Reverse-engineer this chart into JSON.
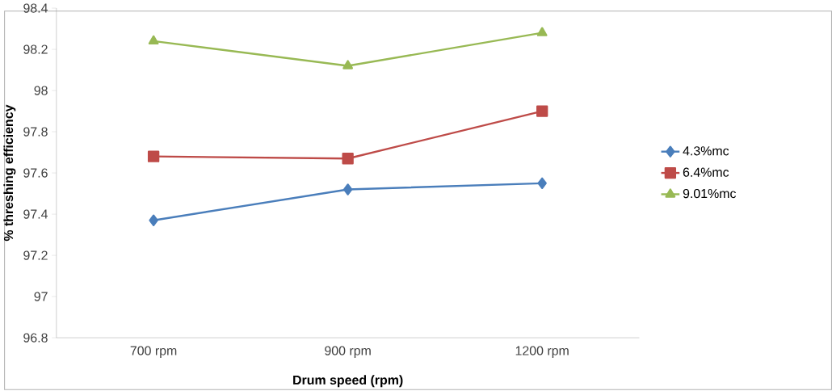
{
  "chart_data": {
    "type": "line",
    "xlabel": "Drum speed (rpm)",
    "ylabel": "% threshing efficiency",
    "categories": [
      "700 rpm",
      "900 rpm",
      "1200 rpm"
    ],
    "series": [
      {
        "name": "4.3%mc",
        "color": "#4a7ebb",
        "marker": "diamond",
        "values": [
          97.37,
          97.52,
          97.55
        ]
      },
      {
        "name": "6.4%mc",
        "color": "#be4b48",
        "marker": "square",
        "values": [
          97.68,
          97.67,
          97.9
        ]
      },
      {
        "name": "9.01%mc",
        "color": "#98b954",
        "marker": "triangle",
        "values": [
          98.24,
          98.12,
          98.28
        ]
      }
    ],
    "ylim": [
      96.8,
      98.4
    ],
    "yticks": [
      96.8,
      97,
      97.2,
      97.4,
      97.6,
      97.8,
      98,
      98.2,
      98.4
    ],
    "grid": false,
    "legend": "right",
    "line_style": "solid"
  }
}
